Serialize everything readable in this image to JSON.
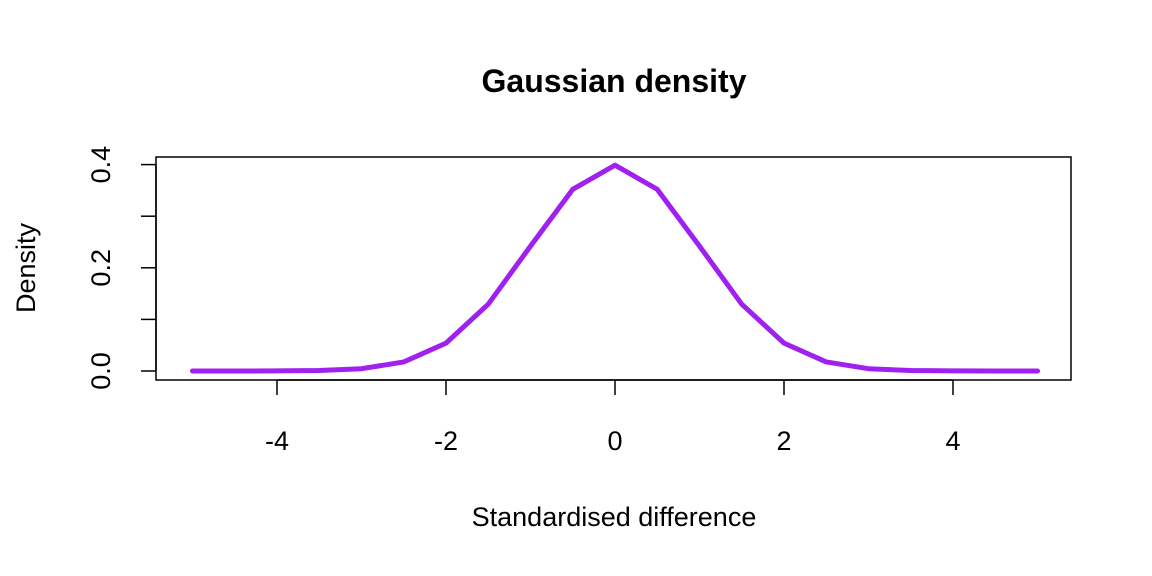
{
  "chart_data": {
    "type": "line",
    "title": "Gaussian density",
    "xlabel": "Standardised difference",
    "ylabel": "Density",
    "xlim": [
      -5,
      5
    ],
    "ylim": [
      0,
      0.4
    ],
    "xticks": [
      -4,
      -2,
      0,
      2,
      4
    ],
    "xtick_labels": [
      "-4",
      "-2",
      "0",
      "2",
      "4"
    ],
    "yticks": [
      0.0,
      0.1,
      0.2,
      0.3,
      0.4
    ],
    "ytick_labels": [
      "0.0",
      "",
      "0.2",
      "",
      "0.4"
    ],
    "grid": false,
    "series": [
      {
        "color": "#a020f0",
        "x": [
          -5,
          -4.5,
          -4,
          -3.5,
          -3,
          -2.5,
          -2,
          -1.5,
          -1,
          -0.5,
          0,
          0.5,
          1,
          1.5,
          2,
          2.5,
          3,
          3.5,
          4,
          4.5,
          5
        ],
        "y": [
          1.5e-06,
          1.6e-05,
          0.000134,
          0.000873,
          0.004432,
          0.017528,
          0.053991,
          0.129518,
          0.241971,
          0.352065,
          0.398942,
          0.352065,
          0.241971,
          0.129518,
          0.053991,
          0.017528,
          0.004432,
          0.000873,
          0.000134,
          1.6e-05,
          1.5e-06
        ]
      }
    ]
  }
}
